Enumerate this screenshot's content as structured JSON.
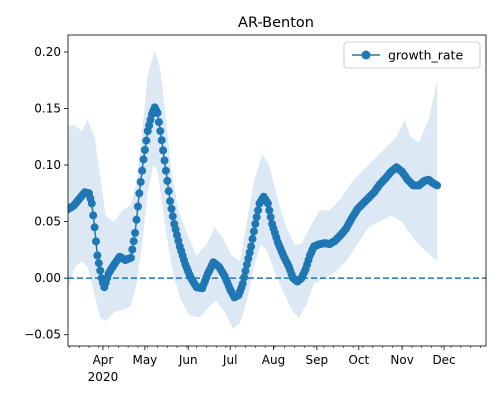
{
  "chart_data": {
    "type": "line",
    "title": "AR-Benton",
    "xlabel": "",
    "ylabel": "",
    "x_start": "2020-03-07",
    "x_end": "2020-12-31",
    "xlim": [
      "2020-03-07",
      "2020-12-31"
    ],
    "ylim": [
      -0.06,
      0.215
    ],
    "x_ticks": [
      {
        "date": "2020-04-01",
        "label": "Apr",
        "sublabel": "2020"
      },
      {
        "date": "2020-05-01",
        "label": "May"
      },
      {
        "date": "2020-06-01",
        "label": "Jun"
      },
      {
        "date": "2020-07-01",
        "label": "Jul"
      },
      {
        "date": "2020-08-01",
        "label": "Aug"
      },
      {
        "date": "2020-09-01",
        "label": "Sep"
      },
      {
        "date": "2020-10-01",
        "label": "Oct"
      },
      {
        "date": "2020-11-01",
        "label": "Nov"
      },
      {
        "date": "2020-12-01",
        "label": "Dec"
      }
    ],
    "y_ticks": [
      {
        "value": -0.05,
        "label": "−0.05"
      },
      {
        "value": 0.0,
        "label": "0.00"
      },
      {
        "value": 0.05,
        "label": "0.05"
      },
      {
        "value": 0.1,
        "label": "0.10"
      },
      {
        "value": 0.15,
        "label": "0.15"
      },
      {
        "value": 0.2,
        "label": "0.20"
      }
    ],
    "legend": {
      "position": "top-right",
      "entries": [
        "growth_rate"
      ]
    },
    "reference_line": {
      "y": 0.0,
      "style": "dashed",
      "color": "#1f77b4"
    },
    "grid": false,
    "colors": {
      "line": "#1f77b4",
      "band": "#dce9f5"
    },
    "series": [
      {
        "name": "growth_rate",
        "marker": "circle",
        "points": [
          [
            "2020-03-07",
            0.061
          ],
          [
            "2020-03-11",
            0.064
          ],
          [
            "2020-03-15",
            0.07
          ],
          [
            "2020-03-19",
            0.076
          ],
          [
            "2020-03-22",
            0.075
          ],
          [
            "2020-03-24",
            0.066
          ],
          [
            "2020-03-26",
            0.045
          ],
          [
            "2020-03-28",
            0.02
          ],
          [
            "2020-03-31",
            0.0
          ],
          [
            "2020-04-02",
            -0.008
          ],
          [
            "2020-04-05",
            0.004
          ],
          [
            "2020-04-09",
            0.012
          ],
          [
            "2020-04-13",
            0.019
          ],
          [
            "2020-04-17",
            0.016
          ],
          [
            "2020-04-21",
            0.018
          ],
          [
            "2020-04-24",
            0.04
          ],
          [
            "2020-04-27",
            0.075
          ],
          [
            "2020-04-30",
            0.105
          ],
          [
            "2020-05-03",
            0.13
          ],
          [
            "2020-05-06",
            0.145
          ],
          [
            "2020-05-08",
            0.151
          ],
          [
            "2020-05-10",
            0.146
          ],
          [
            "2020-05-13",
            0.122
          ],
          [
            "2020-05-16",
            0.095
          ],
          [
            "2020-05-19",
            0.068
          ],
          [
            "2020-05-22",
            0.048
          ],
          [
            "2020-05-26",
            0.028
          ],
          [
            "2020-05-30",
            0.012
          ],
          [
            "2020-06-03",
            0.0
          ],
          [
            "2020-06-07",
            -0.008
          ],
          [
            "2020-06-11",
            -0.009
          ],
          [
            "2020-06-15",
            0.004
          ],
          [
            "2020-06-19",
            0.014
          ],
          [
            "2020-06-23",
            0.01
          ],
          [
            "2020-06-27",
            0.002
          ],
          [
            "2020-07-01",
            -0.01
          ],
          [
            "2020-07-04",
            -0.017
          ],
          [
            "2020-07-07",
            -0.015
          ],
          [
            "2020-07-10",
            -0.005
          ],
          [
            "2020-07-13",
            0.012
          ],
          [
            "2020-07-16",
            0.028
          ],
          [
            "2020-07-19",
            0.048
          ],
          [
            "2020-07-22",
            0.066
          ],
          [
            "2020-07-25",
            0.072
          ],
          [
            "2020-07-28",
            0.066
          ],
          [
            "2020-07-31",
            0.048
          ],
          [
            "2020-08-04",
            0.032
          ],
          [
            "2020-08-08",
            0.02
          ],
          [
            "2020-08-12",
            0.01
          ],
          [
            "2020-08-15",
            0.0
          ],
          [
            "2020-08-18",
            -0.003
          ],
          [
            "2020-08-21",
            0.0
          ],
          [
            "2020-08-24",
            0.008
          ],
          [
            "2020-08-27",
            0.02
          ],
          [
            "2020-08-30",
            0.028
          ],
          [
            "2020-09-03",
            0.03
          ],
          [
            "2020-09-07",
            0.031
          ],
          [
            "2020-09-10",
            0.03
          ],
          [
            "2020-09-14",
            0.033
          ],
          [
            "2020-09-18",
            0.038
          ],
          [
            "2020-09-22",
            0.044
          ],
          [
            "2020-09-26",
            0.053
          ],
          [
            "2020-09-30",
            0.061
          ],
          [
            "2020-10-04",
            0.066
          ],
          [
            "2020-10-08",
            0.071
          ],
          [
            "2020-10-12",
            0.076
          ],
          [
            "2020-10-16",
            0.083
          ],
          [
            "2020-10-20",
            0.088
          ],
          [
            "2020-10-24",
            0.094
          ],
          [
            "2020-10-28",
            0.098
          ],
          [
            "2020-11-01",
            0.094
          ],
          [
            "2020-11-05",
            0.087
          ],
          [
            "2020-11-09",
            0.082
          ],
          [
            "2020-11-13",
            0.082
          ],
          [
            "2020-11-17",
            0.086
          ],
          [
            "2020-11-20",
            0.087
          ],
          [
            "2020-11-23",
            0.084
          ],
          [
            "2020-11-26",
            0.082
          ]
        ]
      }
    ],
    "confidence_band": {
      "lower": [
        [
          "2020-03-07",
          -0.01
        ],
        [
          "2020-03-12",
          0.01
        ],
        [
          "2020-03-17",
          0.015
        ],
        [
          "2020-03-21",
          0.01
        ],
        [
          "2020-03-25",
          -0.01
        ],
        [
          "2020-03-30",
          -0.035
        ],
        [
          "2020-04-03",
          -0.038
        ],
        [
          "2020-04-09",
          -0.03
        ],
        [
          "2020-04-15",
          -0.028
        ],
        [
          "2020-04-21",
          -0.025
        ],
        [
          "2020-04-25",
          -0.005
        ],
        [
          "2020-04-29",
          0.03
        ],
        [
          "2020-05-03",
          0.075
        ],
        [
          "2020-05-07",
          0.1
        ],
        [
          "2020-05-10",
          0.095
        ],
        [
          "2020-05-14",
          0.06
        ],
        [
          "2020-05-18",
          0.025
        ],
        [
          "2020-05-22",
          0.0
        ],
        [
          "2020-05-27",
          -0.02
        ],
        [
          "2020-06-02",
          -0.033
        ],
        [
          "2020-06-09",
          -0.035
        ],
        [
          "2020-06-16",
          -0.025
        ],
        [
          "2020-06-21",
          -0.02
        ],
        [
          "2020-06-27",
          -0.03
        ],
        [
          "2020-07-03",
          -0.045
        ],
        [
          "2020-07-08",
          -0.04
        ],
        [
          "2020-07-13",
          -0.02
        ],
        [
          "2020-07-18",
          0.01
        ],
        [
          "2020-07-23",
          0.03
        ],
        [
          "2020-07-27",
          0.025
        ],
        [
          "2020-08-02",
          0.005
        ],
        [
          "2020-08-09",
          -0.015
        ],
        [
          "2020-08-15",
          -0.03
        ],
        [
          "2020-08-19",
          -0.035
        ],
        [
          "2020-08-24",
          -0.025
        ],
        [
          "2020-08-30",
          -0.005
        ],
        [
          "2020-09-07",
          0.0
        ],
        [
          "2020-09-14",
          0.005
        ],
        [
          "2020-09-22",
          0.015
        ],
        [
          "2020-09-30",
          0.03
        ],
        [
          "2020-10-08",
          0.045
        ],
        [
          "2020-10-16",
          0.05
        ],
        [
          "2020-10-24",
          0.055
        ],
        [
          "2020-11-01",
          0.05
        ],
        [
          "2020-11-09",
          0.035
        ],
        [
          "2020-11-17",
          0.025
        ],
        [
          "2020-11-26",
          0.015
        ]
      ],
      "upper": [
        [
          "2020-03-26",
          0.125
        ],
        [
          "2020-03-21",
          0.14
        ],
        [
          "2020-03-17",
          0.13
        ],
        [
          "2020-03-12",
          0.135
        ],
        [
          "2020-03-07",
          0.135
        ]
      ]
    }
  },
  "band_upper_full": [
    [
      "2020-03-07",
      0.135
    ],
    [
      "2020-03-12",
      0.135
    ],
    [
      "2020-03-17",
      0.13
    ],
    [
      "2020-03-21",
      0.14
    ],
    [
      "2020-03-26",
      0.125
    ],
    [
      "2020-03-30",
      0.09
    ],
    [
      "2020-04-03",
      0.055
    ],
    [
      "2020-04-09",
      0.05
    ],
    [
      "2020-04-15",
      0.06
    ],
    [
      "2020-04-21",
      0.065
    ],
    [
      "2020-04-25",
      0.085
    ],
    [
      "2020-04-29",
      0.13
    ],
    [
      "2020-05-03",
      0.18
    ],
    [
      "2020-05-08",
      0.202
    ],
    [
      "2020-05-12",
      0.185
    ],
    [
      "2020-05-16",
      0.14
    ],
    [
      "2020-05-20",
      0.095
    ],
    [
      "2020-05-25",
      0.06
    ],
    [
      "2020-05-31",
      0.04
    ],
    [
      "2020-06-07",
      0.02
    ],
    [
      "2020-06-14",
      0.03
    ],
    [
      "2020-06-20",
      0.045
    ],
    [
      "2020-06-26",
      0.035
    ],
    [
      "2020-07-02",
      0.02
    ],
    [
      "2020-07-08",
      0.015
    ],
    [
      "2020-07-13",
      0.05
    ],
    [
      "2020-07-18",
      0.085
    ],
    [
      "2020-07-24",
      0.11
    ],
    [
      "2020-07-29",
      0.1
    ],
    [
      "2020-08-04",
      0.07
    ],
    [
      "2020-08-10",
      0.045
    ],
    [
      "2020-08-16",
      0.03
    ],
    [
      "2020-08-21",
      0.03
    ],
    [
      "2020-08-27",
      0.045
    ],
    [
      "2020-09-03",
      0.06
    ],
    [
      "2020-09-10",
      0.06
    ],
    [
      "2020-09-18",
      0.07
    ],
    [
      "2020-09-26",
      0.085
    ],
    [
      "2020-10-04",
      0.095
    ],
    [
      "2020-10-12",
      0.105
    ],
    [
      "2020-10-20",
      0.115
    ],
    [
      "2020-10-28",
      0.125
    ],
    [
      "2020-11-03",
      0.14
    ],
    [
      "2020-11-07",
      0.125
    ],
    [
      "2020-11-13",
      0.12
    ],
    [
      "2020-11-20",
      0.14
    ],
    [
      "2020-11-26",
      0.175
    ]
  ]
}
